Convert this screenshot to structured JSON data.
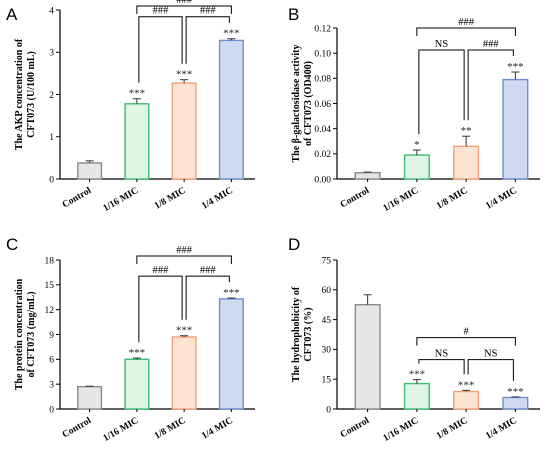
{
  "colors": {
    "bar_fills": [
      "#e6e6e6",
      "#dff5e6",
      "#fde3d3",
      "#cfd9ef"
    ],
    "bar_strokes": [
      "#8a8a8a",
      "#3dbd74",
      "#f2a27a",
      "#6f8fd0"
    ],
    "axis": "#000000"
  },
  "chart_data": [
    {
      "type": "bar",
      "panel": "A",
      "categories": [
        "Control",
        "1/16 MIC",
        "1/8 MIC",
        "1/4 MIC"
      ],
      "values": [
        0.38,
        1.78,
        2.27,
        3.28
      ],
      "errors": [
        0.05,
        0.12,
        0.08,
        0.04
      ],
      "ylabel_lines": [
        "The AKP concentration of",
        "CFT073 (U/100 mL)"
      ],
      "ylim": [
        0,
        4
      ],
      "yticks": [
        0,
        1,
        2,
        3,
        4
      ],
      "ytick_labels": [
        "0",
        "1",
        "2",
        "3",
        "4"
      ],
      "significance": [
        "",
        "***",
        "***",
        "***"
      ],
      "brackets": [
        {
          "from": 1,
          "to": 3,
          "label": "###"
        },
        {
          "from": 1,
          "to": 2,
          "label": "###"
        },
        {
          "from": 2,
          "to": 3,
          "label": "###"
        }
      ]
    },
    {
      "type": "bar",
      "panel": "B",
      "categories": [
        "Control",
        "1/16 MIC",
        "1/8 MIC",
        "1/4 MIC"
      ],
      "values": [
        0.005,
        0.019,
        0.026,
        0.079
      ],
      "errors": [
        0.0005,
        0.004,
        0.008,
        0.006
      ],
      "ylabel_lines": [
        "The β-galactosidase activity",
        "of CFT073 (OD400)"
      ],
      "ylim": [
        0,
        0.12
      ],
      "yticks": [
        0,
        0.02,
        0.04,
        0.06,
        0.08,
        0.1,
        0.12
      ],
      "ytick_labels": [
        "0.00",
        "0.02",
        "0.04",
        "0.06",
        "0.08",
        "0.10",
        "0.12"
      ],
      "significance": [
        "",
        "*",
        "**",
        "***"
      ],
      "brackets": [
        {
          "from": 1,
          "to": 3,
          "label": "###"
        },
        {
          "from": 1,
          "to": 2,
          "label": "NS"
        },
        {
          "from": 2,
          "to": 3,
          "label": "###"
        }
      ]
    },
    {
      "type": "bar",
      "panel": "C",
      "categories": [
        "Control",
        "1/16 MIC",
        "1/8 MIC",
        "1/4 MIC"
      ],
      "values": [
        2.7,
        6.0,
        8.7,
        13.3
      ],
      "errors": [
        0.05,
        0.15,
        0.15,
        0.1
      ],
      "ylabel_lines": [
        "The protein concentration",
        "of CFT073 (mg/mL)"
      ],
      "ylim": [
        0,
        18
      ],
      "yticks": [
        0,
        3,
        6,
        9,
        12,
        15,
        18
      ],
      "ytick_labels": [
        "0",
        "3",
        "6",
        "9",
        "12",
        "15",
        "18"
      ],
      "significance": [
        "",
        "***",
        "***",
        "***"
      ],
      "brackets": [
        {
          "from": 1,
          "to": 3,
          "label": "###"
        },
        {
          "from": 1,
          "to": 2,
          "label": "###"
        },
        {
          "from": 2,
          "to": 3,
          "label": "###"
        }
      ]
    },
    {
      "type": "bar",
      "panel": "D",
      "categories": [
        "Control",
        "1/16 MIC",
        "1/8 MIC",
        "1/4 MIC"
      ],
      "values": [
        52.5,
        12.8,
        8.8,
        5.8
      ],
      "errors": [
        5.0,
        2.0,
        0.6,
        0.3
      ],
      "ylabel_lines": [
        "The hydrophobicity of",
        "CFT073 (%)"
      ],
      "ylim": [
        0,
        75
      ],
      "yticks": [
        0,
        15,
        30,
        45,
        60,
        75
      ],
      "ytick_labels": [
        "0",
        "15",
        "30",
        "45",
        "60",
        "75"
      ],
      "significance": [
        "",
        "***",
        "***",
        "***"
      ],
      "brackets": [
        {
          "from": 1,
          "to": 3,
          "label": "#"
        },
        {
          "from": 1,
          "to": 2,
          "label": "NS"
        },
        {
          "from": 2,
          "to": 3,
          "label": "NS"
        }
      ]
    }
  ]
}
